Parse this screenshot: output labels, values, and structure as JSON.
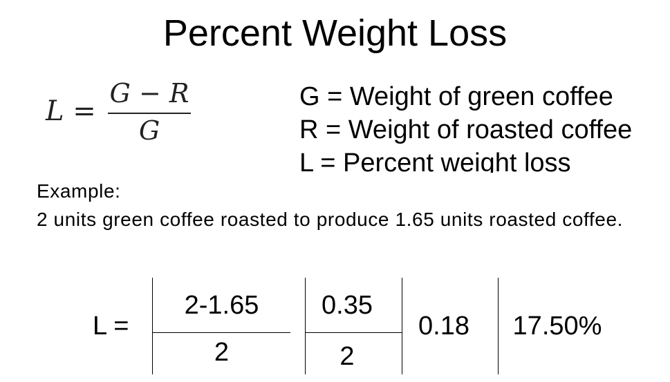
{
  "title": "Percent Weight Loss",
  "formula": {
    "lhs": "L =",
    "numerator": "G − R",
    "denominator": "G"
  },
  "definitions": [
    "G = Weight of green coffee",
    "R = Weight of roasted coffee",
    "L = Percent weight loss"
  ],
  "example": {
    "heading": "Example:",
    "text": "2 units green coffee roasted to produce 1.65 units roasted coffee."
  },
  "calculation": {
    "lhs": "L =",
    "step1_numerator": "2-1.65",
    "step1_denominator": "2",
    "step2_numerator": "0.35",
    "step2_denominator": "2",
    "step3_value": "0.18",
    "result": "17.50%"
  }
}
